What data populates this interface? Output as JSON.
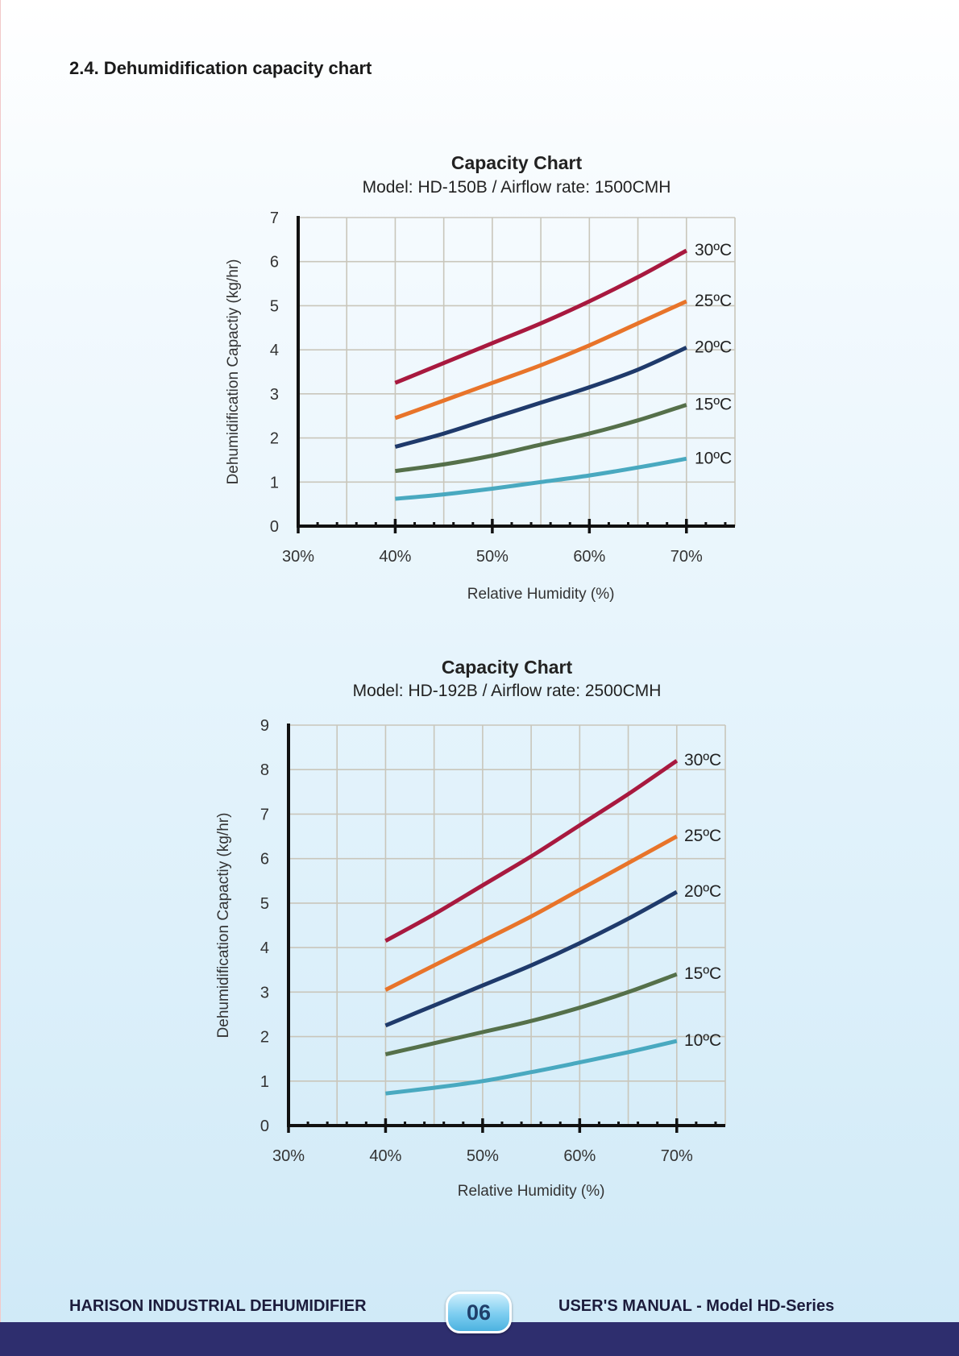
{
  "section": {
    "title": "2.4. Dehumidification capacity chart"
  },
  "chart_data": [
    {
      "type": "line",
      "title": "Capacity Chart",
      "subtitle": "Model: HD-150B / Airflow rate: 1500CMH",
      "xlabel": "Relative Humidity (%)",
      "ylabel": "Dehumidification Capactiy (kg/hr)",
      "xlim": [
        30,
        75
      ],
      "ylim": [
        0,
        7
      ],
      "x_ticks": [
        30,
        40,
        50,
        60,
        70
      ],
      "x_tick_labels": [
        "30%",
        "40%",
        "50%",
        "60%",
        "70%"
      ],
      "y_ticks": [
        0,
        1,
        2,
        3,
        4,
        5,
        6,
        7
      ],
      "y_tick_labels": [
        "0",
        "1",
        "2",
        "3",
        "4",
        "5",
        "6",
        "7"
      ],
      "grid": true,
      "x": [
        40,
        45,
        50,
        55,
        60,
        65,
        70
      ],
      "series": [
        {
          "name": "30°C",
          "label": "30ºC",
          "color": "#a8193f",
          "values": [
            3.25,
            3.7,
            4.15,
            4.6,
            5.1,
            5.65,
            6.25
          ]
        },
        {
          "name": "25°C",
          "label": "25ºC",
          "color": "#e8742a",
          "values": [
            2.45,
            2.85,
            3.25,
            3.65,
            4.1,
            4.6,
            5.1
          ]
        },
        {
          "name": "20°C",
          "label": "20ºC",
          "color": "#1f3a6b",
          "values": [
            1.8,
            2.1,
            2.45,
            2.8,
            3.15,
            3.55,
            4.05
          ]
        },
        {
          "name": "15°C",
          "label": "15ºC",
          "color": "#55704a",
          "values": [
            1.25,
            1.4,
            1.6,
            1.85,
            2.1,
            2.4,
            2.75
          ]
        },
        {
          "name": "10°C",
          "label": "10ºC",
          "color": "#49a9c0",
          "values": [
            0.62,
            0.72,
            0.85,
            1.0,
            1.15,
            1.33,
            1.53
          ]
        }
      ]
    },
    {
      "type": "line",
      "title": "Capacity Chart",
      "subtitle": "Model: HD-192B / Airflow rate: 2500CMH",
      "xlabel": "Relative Humidity (%)",
      "ylabel": "Dehumidification Capactiy (kg/hr)",
      "xlim": [
        30,
        75
      ],
      "ylim": [
        0,
        9
      ],
      "x_ticks": [
        30,
        40,
        50,
        60,
        70
      ],
      "x_tick_labels": [
        "30%",
        "40%",
        "50%",
        "60%",
        "70%"
      ],
      "y_ticks": [
        0,
        1,
        2,
        3,
        4,
        5,
        6,
        7,
        8,
        9
      ],
      "y_tick_labels": [
        "0",
        "1",
        "2",
        "3",
        "4",
        "5",
        "6",
        "7",
        "8",
        "9"
      ],
      "grid": true,
      "x": [
        40,
        45,
        50,
        55,
        60,
        65,
        70
      ],
      "series": [
        {
          "name": "30°C",
          "label": "30ºC",
          "color": "#a8193f",
          "values": [
            4.15,
            4.75,
            5.4,
            6.05,
            6.75,
            7.45,
            8.2
          ]
        },
        {
          "name": "25°C",
          "label": "25ºC",
          "color": "#e8742a",
          "values": [
            3.05,
            3.6,
            4.15,
            4.7,
            5.3,
            5.9,
            6.5
          ]
        },
        {
          "name": "20°C",
          "label": "20ºC",
          "color": "#1f3a6b",
          "values": [
            2.25,
            2.7,
            3.15,
            3.6,
            4.1,
            4.65,
            5.25
          ]
        },
        {
          "name": "15°C",
          "label": "15ºC",
          "color": "#55704a",
          "values": [
            1.6,
            1.85,
            2.1,
            2.35,
            2.65,
            3.0,
            3.4
          ]
        },
        {
          "name": "10°C",
          "label": "10ºC",
          "color": "#49a9c0",
          "values": [
            0.72,
            0.85,
            1.0,
            1.2,
            1.42,
            1.65,
            1.9
          ]
        }
      ]
    }
  ],
  "footer": {
    "left": "HARISON INDUSTRIAL DEHUMIDIFIER",
    "page": "06",
    "right": "USER'S MANUAL -  Model HD-Series"
  }
}
